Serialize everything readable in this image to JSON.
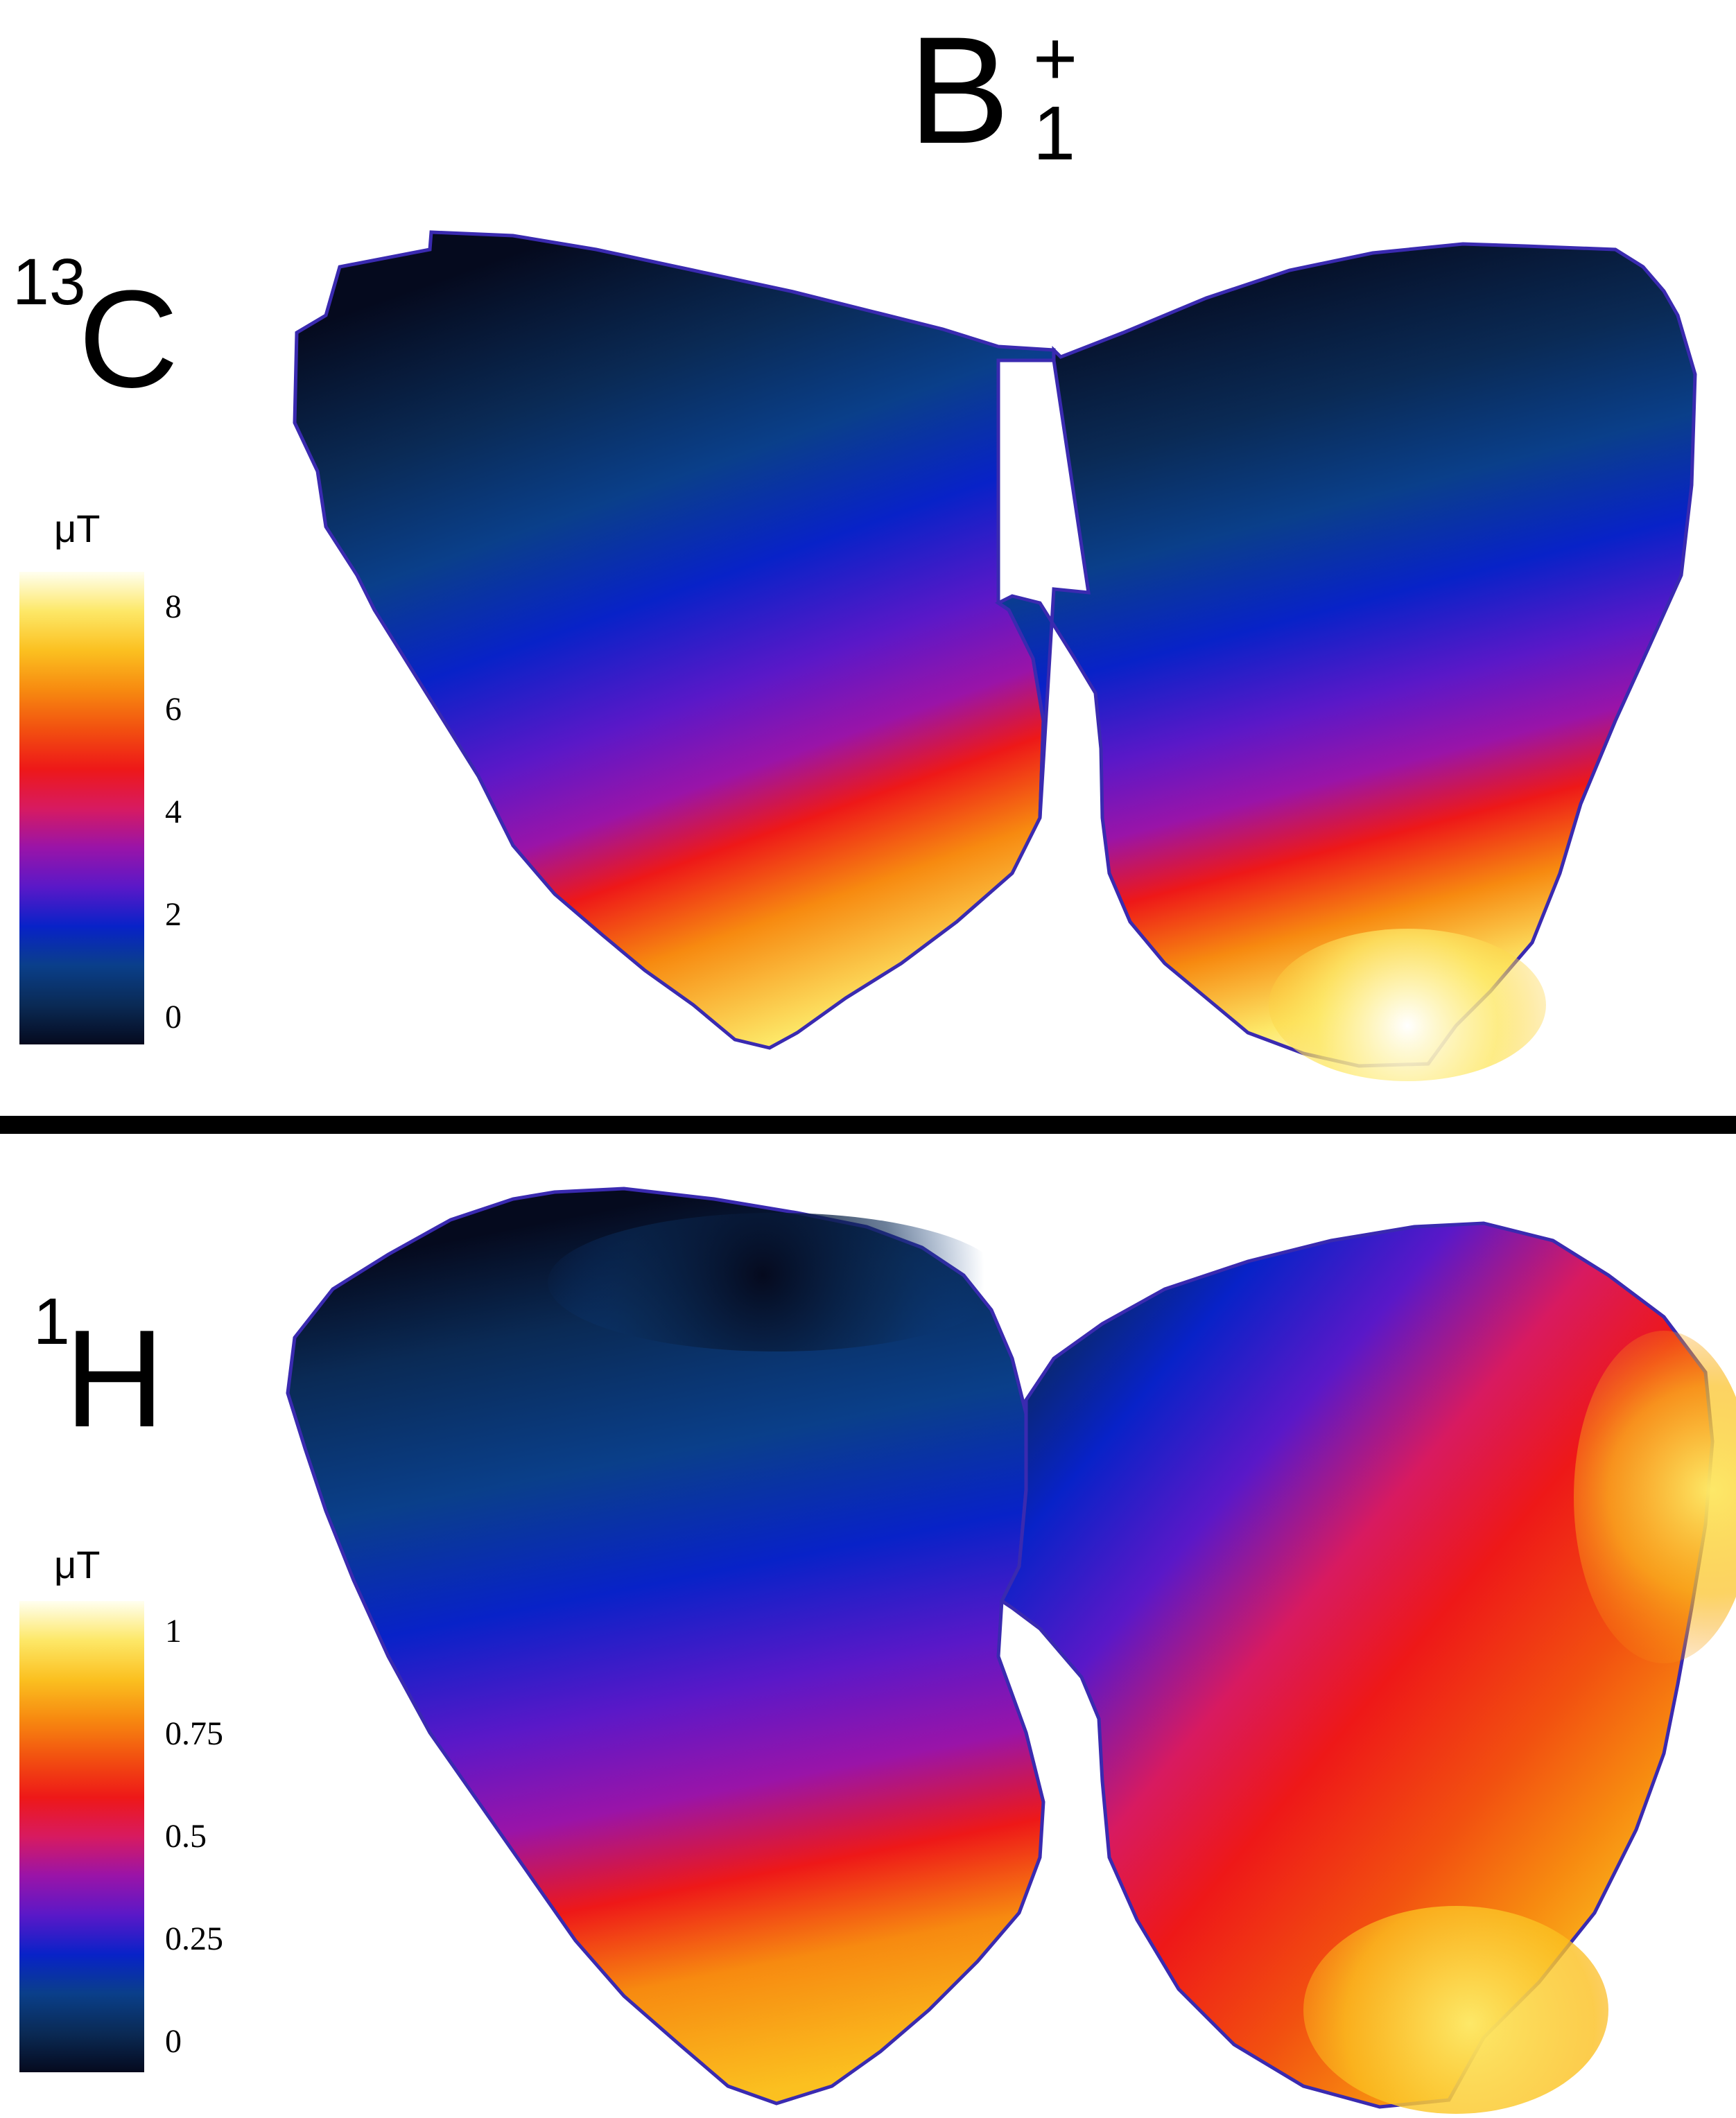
{
  "title": {
    "base": "B",
    "superscript": "+",
    "subscript": "1"
  },
  "panels": [
    {
      "nucleus_mass": "13",
      "nucleus_symbol": "C",
      "colorbar": {
        "unit": "μT",
        "ticks": [
          "8",
          "6",
          "4",
          "2",
          "0"
        ],
        "range": [
          0,
          8.6
        ]
      }
    },
    {
      "nucleus_mass": "1",
      "nucleus_symbol": "H",
      "colorbar": {
        "unit": "μT",
        "ticks": [
          "1",
          "0.75",
          "0.5",
          "0.25",
          "0"
        ],
        "range": [
          0,
          1.05
        ]
      }
    }
  ],
  "colormap": [
    "#050a1e",
    "#0a2a55",
    "#0a3f8a",
    "#0822c8",
    "#5a18c8",
    "#9a14a8",
    "#d81a60",
    "#ee1818",
    "#f25010",
    "#f78a10",
    "#fbc020",
    "#fde868",
    "#fffff0"
  ]
}
